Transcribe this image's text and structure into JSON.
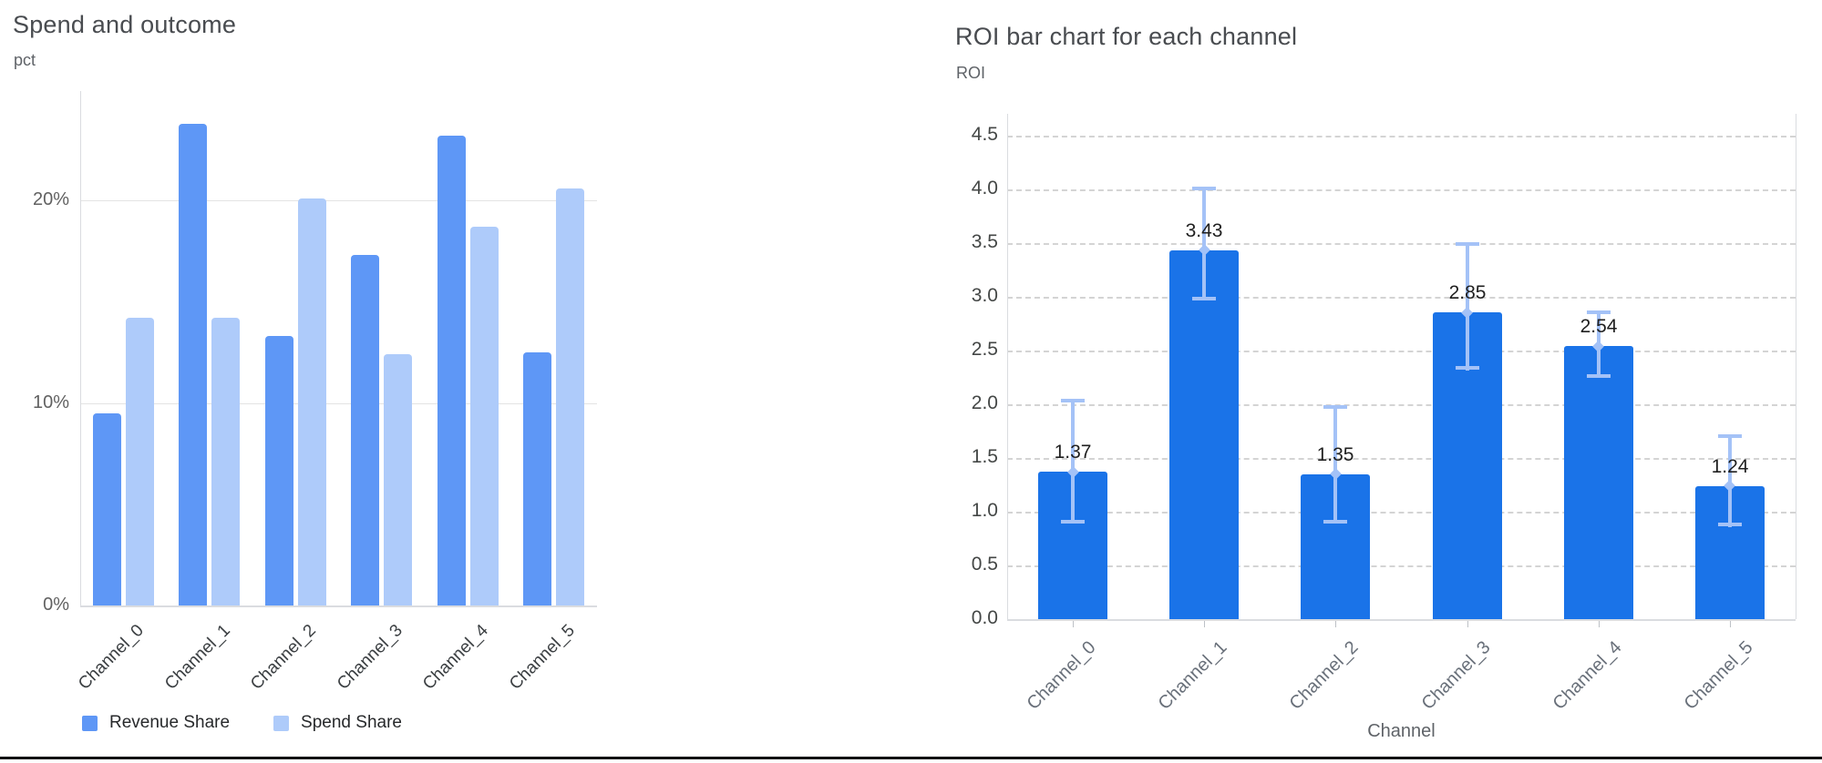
{
  "page": {
    "background": "#ffffff",
    "bottom_rule_color": "#0b0b0d"
  },
  "chart_data": [
    {
      "type": "bar",
      "title": "Spend and outcome",
      "ylabel": "pct",
      "xlabel": "",
      "categories": [
        "Channel_0",
        "Channel_1",
        "Channel_2",
        "Channel_3",
        "Channel_4",
        "Channel_5"
      ],
      "series": [
        {
          "name": "Revenue Share",
          "color": "#5e97f6",
          "values": [
            9.5,
            23.8,
            13.3,
            17.3,
            23.2,
            12.5
          ]
        },
        {
          "name": "Spend Share",
          "color": "#aecbfa",
          "values": [
            14.2,
            14.2,
            20.1,
            12.4,
            18.7,
            20.6
          ]
        }
      ],
      "ytick_values": [
        0,
        10,
        20
      ],
      "ytick_labels": [
        "0%",
        "10%",
        "20%"
      ],
      "ylim": [
        0,
        25.4
      ],
      "unit": "percent",
      "grid": "solid",
      "legend_position": "bottom"
    },
    {
      "type": "bar",
      "title": "ROI bar chart for each channel",
      "ylabel": "ROI",
      "xlabel": "Channel",
      "categories": [
        "Channel_0",
        "Channel_1",
        "Channel_2",
        "Channel_3",
        "Channel_4",
        "Channel_5"
      ],
      "values": [
        1.37,
        3.43,
        1.35,
        2.85,
        2.54,
        1.24
      ],
      "bar_labels": [
        "1.37",
        "3.43",
        "1.35",
        "2.85",
        "2.54",
        "1.24"
      ],
      "error_low": [
        0.89,
        2.96,
        0.89,
        2.32,
        2.24,
        0.86
      ],
      "error_high": [
        2.05,
        4.02,
        1.99,
        3.51,
        2.87,
        1.72
      ],
      "bar_color": "#1a73e8",
      "error_color": "#a4c2f7",
      "ytick_values": [
        0,
        0.5,
        1,
        1.5,
        2,
        2.5,
        3,
        3.5,
        4,
        4.5
      ],
      "ytick_labels": [
        "0.0",
        "0.5",
        "1.0",
        "1.5",
        "2.0",
        "2.5",
        "3.0",
        "3.5",
        "4.0",
        "4.5"
      ],
      "ylim": [
        0,
        4.7
      ],
      "grid": "dashed",
      "legend_position": "none"
    }
  ]
}
